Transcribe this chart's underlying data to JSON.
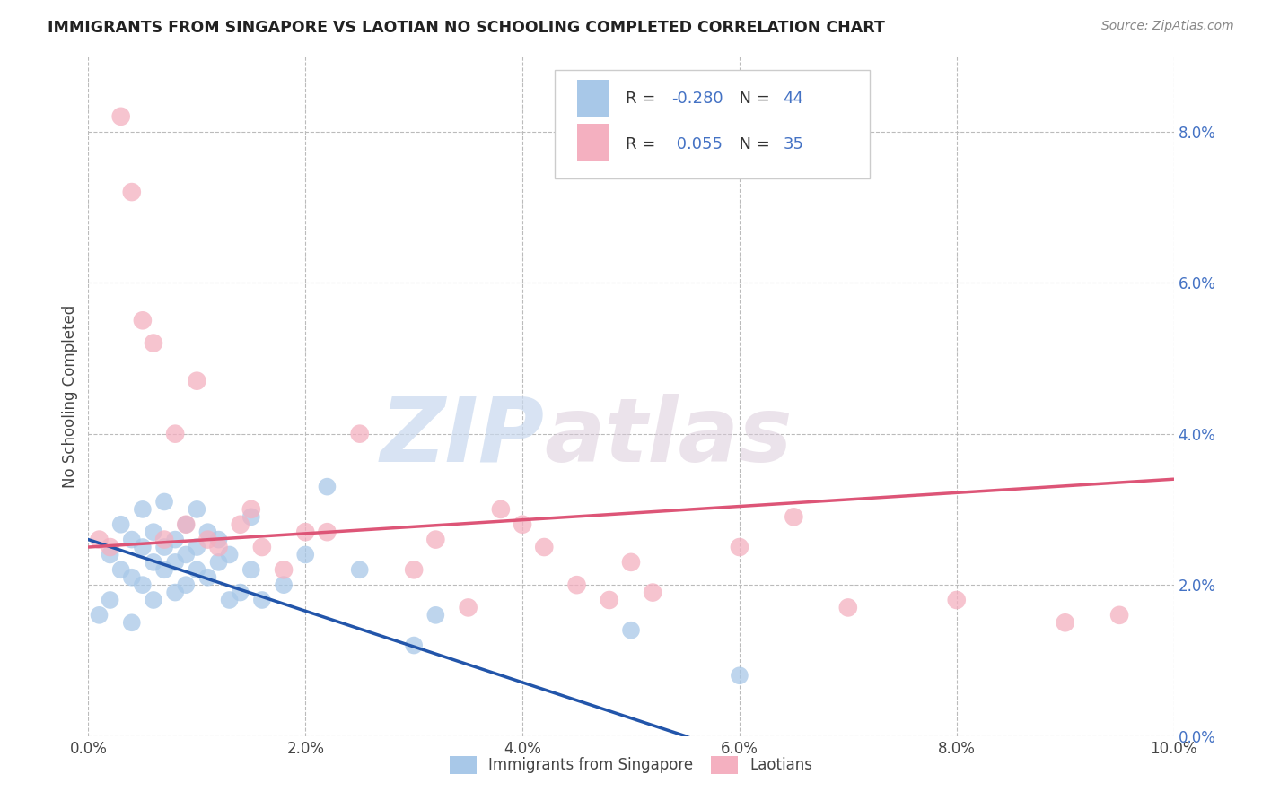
{
  "title": "IMMIGRANTS FROM SINGAPORE VS LAOTIAN NO SCHOOLING COMPLETED CORRELATION CHART",
  "source": "Source: ZipAtlas.com",
  "ylabel": "No Schooling Completed",
  "xlim": [
    0.0,
    0.1
  ],
  "ylim": [
    0.0,
    0.09
  ],
  "xtick_vals": [
    0.0,
    0.02,
    0.04,
    0.06,
    0.08,
    0.1
  ],
  "xtick_labels": [
    "0.0%",
    "2.0%",
    "4.0%",
    "6.0%",
    "8.0%",
    "10.0%"
  ],
  "ytick_vals": [
    0.0,
    0.02,
    0.04,
    0.06,
    0.08
  ],
  "ytick_labels": [
    "0.0%",
    "2.0%",
    "4.0%",
    "6.0%",
    "8.0%"
  ],
  "color_blue": "#a8c8e8",
  "color_pink": "#f4b0c0",
  "line_color_blue": "#2255aa",
  "line_color_pink": "#dd5577",
  "background_color": "#ffffff",
  "grid_color": "#bbbbbb",
  "watermark_zip": "ZIP",
  "watermark_atlas": "atlas",
  "blue_scatter_x": [
    0.001,
    0.002,
    0.002,
    0.003,
    0.003,
    0.004,
    0.004,
    0.004,
    0.005,
    0.005,
    0.005,
    0.006,
    0.006,
    0.006,
    0.007,
    0.007,
    0.007,
    0.008,
    0.008,
    0.008,
    0.009,
    0.009,
    0.009,
    0.01,
    0.01,
    0.01,
    0.011,
    0.011,
    0.012,
    0.012,
    0.013,
    0.013,
    0.014,
    0.015,
    0.015,
    0.016,
    0.018,
    0.02,
    0.022,
    0.025,
    0.03,
    0.032,
    0.05,
    0.06
  ],
  "blue_scatter_y": [
    0.016,
    0.024,
    0.018,
    0.022,
    0.028,
    0.021,
    0.026,
    0.015,
    0.02,
    0.025,
    0.03,
    0.018,
    0.023,
    0.027,
    0.022,
    0.025,
    0.031,
    0.019,
    0.023,
    0.026,
    0.02,
    0.024,
    0.028,
    0.022,
    0.025,
    0.03,
    0.021,
    0.027,
    0.023,
    0.026,
    0.018,
    0.024,
    0.019,
    0.029,
    0.022,
    0.018,
    0.02,
    0.024,
    0.033,
    0.022,
    0.012,
    0.016,
    0.014,
    0.008
  ],
  "pink_scatter_x": [
    0.001,
    0.002,
    0.003,
    0.004,
    0.005,
    0.006,
    0.007,
    0.008,
    0.009,
    0.01,
    0.011,
    0.012,
    0.014,
    0.015,
    0.016,
    0.018,
    0.02,
    0.022,
    0.025,
    0.03,
    0.032,
    0.035,
    0.038,
    0.04,
    0.042,
    0.045,
    0.048,
    0.05,
    0.052,
    0.06,
    0.065,
    0.07,
    0.08,
    0.09,
    0.095
  ],
  "pink_scatter_y": [
    0.026,
    0.025,
    0.082,
    0.072,
    0.055,
    0.052,
    0.026,
    0.04,
    0.028,
    0.047,
    0.026,
    0.025,
    0.028,
    0.03,
    0.025,
    0.022,
    0.027,
    0.027,
    0.04,
    0.022,
    0.026,
    0.017,
    0.03,
    0.028,
    0.025,
    0.02,
    0.018,
    0.023,
    0.019,
    0.025,
    0.029,
    0.017,
    0.018,
    0.015,
    0.016
  ],
  "blue_line_x0": 0.0,
  "blue_line_y0": 0.026,
  "blue_line_x1": 0.055,
  "blue_line_y1": 0.0,
  "pink_line_x0": 0.0,
  "pink_line_y0": 0.025,
  "pink_line_x1": 0.1,
  "pink_line_y1": 0.034
}
